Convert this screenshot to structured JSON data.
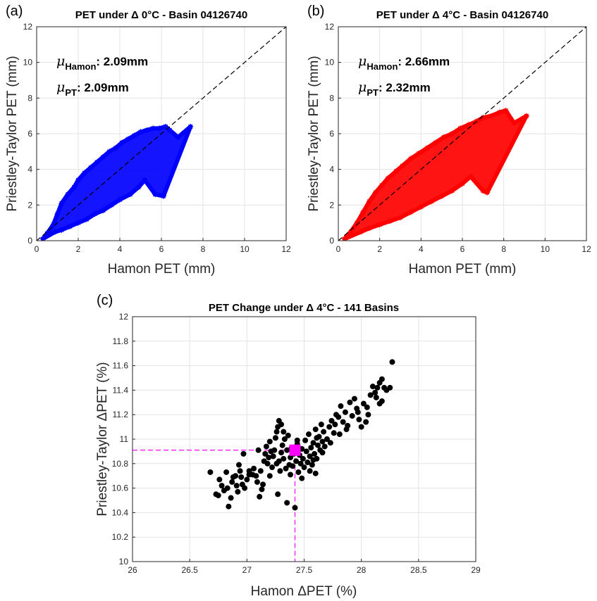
{
  "chart_data": [
    {
      "panel_label": "(a)",
      "type": "scatter",
      "title": "PET under Δ 0°C - Basin 04126740",
      "xlabel": "Hamon PET (mm)",
      "ylabel": "Priestley-Taylor PET (mm)",
      "xlim": [
        0,
        12
      ],
      "ylim": [
        0,
        12
      ],
      "xticks": [
        "0",
        "2",
        "4",
        "6",
        "8",
        "10",
        "12"
      ],
      "yticks": [
        "0",
        "2",
        "4",
        "6",
        "8",
        "10",
        "12"
      ],
      "grid": true,
      "marker": "asterisk",
      "color": "#0000ff",
      "reference_line": {
        "style": "dashed",
        "color": "#000000",
        "from": [
          0,
          0
        ],
        "to": [
          12,
          12
        ]
      },
      "annotations": [
        {
          "symbol": "μ",
          "subscript": "Hamon",
          "text": ": 2.09mm"
        },
        {
          "symbol": "μ",
          "subscript": "PT",
          "text": ": 2.09mm"
        }
      ],
      "series": [
        {
          "points": [
            [
              0.3,
              0.1
            ],
            [
              0.5,
              0.4
            ],
            [
              0.8,
              0.9
            ],
            [
              1.0,
              1.5
            ],
            [
              1.2,
              2.1
            ],
            [
              1.5,
              2.6
            ],
            [
              1.8,
              3.0
            ],
            [
              2.0,
              3.4
            ],
            [
              2.3,
              3.8
            ],
            [
              2.6,
              4.1
            ],
            [
              2.9,
              4.4
            ],
            [
              3.2,
              4.7
            ],
            [
              3.5,
              5.0
            ],
            [
              3.8,
              5.2
            ],
            [
              4.1,
              5.5
            ],
            [
              4.4,
              5.7
            ],
            [
              4.7,
              5.9
            ],
            [
              5.0,
              6.1
            ],
            [
              5.3,
              6.2
            ],
            [
              5.6,
              6.3
            ],
            [
              5.9,
              6.3
            ],
            [
              6.2,
              6.4
            ],
            [
              6.4,
              6.2
            ],
            [
              6.8,
              5.8
            ],
            [
              7.4,
              6.4
            ],
            [
              6.1,
              2.5
            ],
            [
              5.7,
              2.6
            ],
            [
              5.2,
              3.4
            ],
            [
              4.9,
              3.0
            ],
            [
              4.5,
              2.6
            ],
            [
              4.0,
              2.3
            ],
            [
              3.6,
              2.0
            ],
            [
              3.2,
              1.7
            ],
            [
              2.8,
              1.5
            ],
            [
              2.4,
              1.2
            ],
            [
              2.0,
              1.0
            ],
            [
              1.6,
              0.8
            ],
            [
              1.2,
              0.6
            ],
            [
              0.9,
              0.5
            ]
          ]
        }
      ]
    },
    {
      "panel_label": "(b)",
      "type": "scatter",
      "title": "PET under Δ 4°C - Basin 04126740",
      "xlabel": "Hamon PET (mm)",
      "ylabel": "Priestley-Taylor PET (mm)",
      "xlim": [
        0,
        12
      ],
      "ylim": [
        0,
        12
      ],
      "xticks": [
        "0",
        "2",
        "4",
        "6",
        "8",
        "10",
        "12"
      ],
      "yticks": [
        "0",
        "2",
        "4",
        "6",
        "8",
        "10",
        "12"
      ],
      "grid": true,
      "marker": "asterisk",
      "color": "#ff0000",
      "reference_line": {
        "style": "dashed",
        "color": "#000000",
        "from": [
          0,
          0
        ],
        "to": [
          12,
          12
        ]
      },
      "annotations": [
        {
          "symbol": "μ",
          "subscript": "Hamon",
          "text": ": 2.66mm"
        },
        {
          "symbol": "μ",
          "subscript": "PT",
          "text": ": 2.32mm"
        }
      ],
      "series": [
        {
          "points": [
            [
              0.3,
              0.1
            ],
            [
              0.6,
              0.5
            ],
            [
              0.9,
              1.0
            ],
            [
              1.2,
              1.6
            ],
            [
              1.5,
              2.2
            ],
            [
              1.8,
              2.7
            ],
            [
              2.1,
              3.1
            ],
            [
              2.4,
              3.5
            ],
            [
              2.8,
              3.9
            ],
            [
              3.1,
              4.2
            ],
            [
              3.5,
              4.6
            ],
            [
              3.9,
              4.9
            ],
            [
              4.3,
              5.2
            ],
            [
              4.7,
              5.5
            ],
            [
              5.1,
              5.8
            ],
            [
              5.5,
              6.0
            ],
            [
              5.9,
              6.3
            ],
            [
              6.3,
              6.5
            ],
            [
              6.7,
              6.7
            ],
            [
              7.0,
              6.9
            ],
            [
              7.4,
              7.0
            ],
            [
              7.8,
              7.2
            ],
            [
              8.1,
              7.3
            ],
            [
              8.5,
              6.6
            ],
            [
              9.1,
              7.0
            ],
            [
              7.2,
              2.7
            ],
            [
              7.0,
              2.8
            ],
            [
              6.4,
              3.6
            ],
            [
              6.0,
              3.2
            ],
            [
              5.5,
              2.8
            ],
            [
              5.0,
              2.5
            ],
            [
              4.5,
              2.2
            ],
            [
              4.0,
              1.9
            ],
            [
              3.5,
              1.6
            ],
            [
              3.0,
              1.3
            ],
            [
              2.5,
              1.1
            ],
            [
              2.0,
              0.9
            ],
            [
              1.5,
              0.7
            ],
            [
              1.1,
              0.5
            ]
          ]
        }
      ]
    },
    {
      "panel_label": "(c)",
      "type": "scatter",
      "title": "PET Change under Δ 4°C - 141 Basins",
      "xlabel": "Hamon ΔPET (%)",
      "ylabel": "Priestley-Taylor ΔPET (%)",
      "xlim": [
        26,
        29
      ],
      "ylim": [
        10,
        12
      ],
      "xticks": [
        "26",
        "26.5",
        "27",
        "27.5",
        "28",
        "28.5",
        "29"
      ],
      "yticks": [
        "10",
        "10.2",
        "10.4",
        "10.6",
        "10.8",
        "11",
        "11.2",
        "11.4",
        "11.6",
        "11.8",
        "12"
      ],
      "grid": true,
      "marker": "filled-circle",
      "color": "#000000",
      "highlight": {
        "x": 27.42,
        "y": 10.91,
        "marker": "filled-square",
        "color": "#ff00ff"
      },
      "guide_lines": {
        "style": "dashed",
        "color": "#ff00ff"
      },
      "series": [
        {
          "points": [
            [
              26.68,
              10.73
            ],
            [
              26.73,
              10.55
            ],
            [
              26.75,
              10.54
            ],
            [
              26.76,
              10.67
            ],
            [
              26.78,
              10.62
            ],
            [
              26.8,
              10.58
            ],
            [
              26.82,
              10.73
            ],
            [
              26.83,
              10.6
            ],
            [
              26.84,
              10.45
            ],
            [
              26.86,
              10.52
            ],
            [
              26.87,
              10.65
            ],
            [
              26.88,
              10.69
            ],
            [
              26.9,
              10.7
            ],
            [
              26.91,
              10.62
            ],
            [
              26.92,
              10.57
            ],
            [
              26.94,
              10.74
            ],
            [
              26.95,
              10.69
            ],
            [
              26.96,
              10.63
            ],
            [
              26.97,
              10.88
            ],
            [
              26.98,
              10.6
            ],
            [
              27.0,
              10.67
            ],
            [
              27.02,
              10.74
            ],
            [
              27.05,
              10.71
            ],
            [
              27.06,
              10.76
            ],
            [
              27.08,
              10.7
            ],
            [
              27.09,
              10.65
            ],
            [
              27.1,
              10.91
            ],
            [
              27.11,
              10.53
            ],
            [
              27.12,
              10.74
            ],
            [
              27.13,
              10.59
            ],
            [
              27.15,
              10.82
            ],
            [
              27.16,
              10.88
            ],
            [
              27.17,
              10.94
            ],
            [
              27.18,
              10.8
            ],
            [
              27.19,
              10.85
            ],
            [
              27.2,
              10.98
            ],
            [
              27.21,
              10.9
            ],
            [
              27.22,
              10.77
            ],
            [
              27.23,
              10.86
            ],
            [
              27.24,
              10.91
            ],
            [
              27.25,
              11.01
            ],
            [
              27.26,
              11.06
            ],
            [
              27.27,
              11.1
            ],
            [
              27.28,
              10.82
            ],
            [
              27.28,
              11.15
            ],
            [
              27.29,
              10.74
            ],
            [
              27.3,
              11.12
            ],
            [
              27.3,
              10.89
            ],
            [
              27.31,
              10.95
            ],
            [
              27.32,
              10.84
            ],
            [
              27.33,
              11.0
            ],
            [
              27.34,
              10.76
            ],
            [
              27.35,
              10.91
            ],
            [
              27.36,
              11.03
            ],
            [
              27.37,
              10.79
            ],
            [
              27.38,
              10.85
            ],
            [
              27.39,
              10.93
            ],
            [
              27.4,
              10.78
            ],
            [
              27.41,
              10.88
            ],
            [
              27.42,
              10.44
            ],
            [
              27.43,
              10.82
            ],
            [
              27.44,
              10.96
            ],
            [
              27.45,
              10.73
            ],
            [
              27.46,
              10.87
            ],
            [
              27.47,
              10.8
            ],
            [
              27.48,
              10.92
            ],
            [
              27.49,
              10.84
            ],
            [
              27.5,
              10.77
            ],
            [
              27.51,
              10.99
            ],
            [
              27.52,
              10.9
            ],
            [
              27.53,
              10.81
            ],
            [
              27.54,
              11.04
            ],
            [
              27.55,
              10.86
            ],
            [
              27.56,
              10.93
            ],
            [
              27.57,
              10.79
            ],
            [
              27.58,
              10.97
            ],
            [
              27.59,
              10.88
            ],
            [
              27.6,
              10.72
            ],
            [
              27.6,
              11.08
            ],
            [
              27.61,
              10.84
            ],
            [
              27.62,
              10.95
            ],
            [
              27.63,
              11.02
            ],
            [
              27.64,
              10.91
            ],
            [
              27.65,
              11.12
            ],
            [
              27.66,
              10.98
            ],
            [
              27.67,
              11.06
            ],
            [
              27.68,
              10.94
            ],
            [
              27.7,
              11.0
            ],
            [
              27.72,
              11.1
            ],
            [
              27.74,
              11.15
            ],
            [
              27.76,
              11.05
            ],
            [
              27.78,
              11.2
            ],
            [
              27.8,
              11.18
            ],
            [
              27.82,
              11.27
            ],
            [
              27.84,
              11.14
            ],
            [
              27.86,
              11.22
            ],
            [
              27.88,
              11.11
            ],
            [
              27.9,
              11.3
            ],
            [
              27.92,
              11.19
            ],
            [
              27.94,
              11.33
            ],
            [
              27.96,
              11.25
            ],
            [
              27.98,
              11.16
            ],
            [
              28.0,
              11.1
            ],
            [
              28.02,
              11.29
            ],
            [
              28.04,
              11.14
            ],
            [
              28.06,
              11.2
            ],
            [
              28.08,
              11.36
            ],
            [
              28.1,
              11.43
            ],
            [
              28.12,
              11.38
            ],
            [
              28.14,
              11.42
            ],
            [
              28.16,
              11.46
            ],
            [
              28.18,
              11.31
            ],
            [
              28.18,
              11.49
            ],
            [
              28.2,
              11.42
            ],
            [
              28.22,
              11.4
            ],
            [
              28.25,
              11.42
            ],
            [
              28.27,
              11.63
            ],
            [
              27.35,
              10.48
            ],
            [
              27.27,
              10.55
            ],
            [
              27.14,
              10.63
            ],
            [
              27.02,
              10.71
            ],
            [
              26.93,
              10.79
            ],
            [
              27.2,
              10.7
            ],
            [
              27.48,
              10.68
            ],
            [
              27.55,
              10.74
            ],
            [
              27.38,
              10.71
            ],
            [
              27.26,
              10.8
            ],
            [
              27.58,
              10.83
            ],
            [
              27.66,
              10.89
            ],
            [
              27.73,
              10.97
            ],
            [
              27.81,
              11.04
            ],
            [
              27.87,
              11.08
            ],
            [
              27.97,
              11.22
            ],
            [
              28.05,
              11.26
            ],
            [
              28.13,
              11.34
            ],
            [
              28.16,
              11.29
            ],
            [
              27.77,
              11.12
            ],
            [
              27.61,
              11.01
            ],
            [
              27.44,
              10.99
            ],
            [
              27.32,
              11.06
            ]
          ]
        }
      ]
    }
  ]
}
